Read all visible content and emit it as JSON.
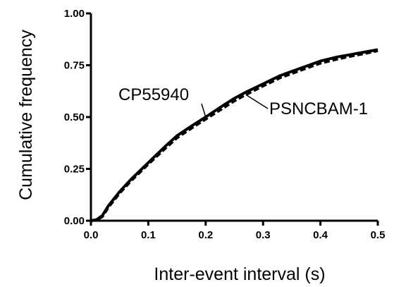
{
  "chart_data": {
    "type": "line",
    "title": "",
    "xlabel": "Inter-event interval  (s)",
    "ylabel": "Cumulative frequency",
    "xlim": [
      0.0,
      0.5
    ],
    "ylim": [
      0.0,
      1.0
    ],
    "x_ticks": [
      "0.0",
      "0.1",
      "0.2",
      "0.3",
      "0.4",
      "0.5"
    ],
    "y_ticks": [
      "0.00",
      "0.25",
      "0.50",
      "0.75",
      "1.00"
    ],
    "grid": false,
    "legend": "none",
    "series": [
      {
        "name": "CP55940",
        "style": "solid",
        "color": "#000000",
        "x": [
          0.0,
          0.01,
          0.02,
          0.03,
          0.05,
          0.07,
          0.1,
          0.13,
          0.15,
          0.18,
          0.2,
          0.23,
          0.25,
          0.27,
          0.3,
          0.33,
          0.35,
          0.38,
          0.4,
          0.43,
          0.45,
          0.48,
          0.5
        ],
        "y": [
          0.0,
          0.005,
          0.025,
          0.07,
          0.14,
          0.2,
          0.28,
          0.36,
          0.41,
          0.465,
          0.5,
          0.555,
          0.59,
          0.62,
          0.66,
          0.7,
          0.72,
          0.75,
          0.77,
          0.79,
          0.8,
          0.815,
          0.825
        ]
      },
      {
        "name": "PSNCBAM-1",
        "style": "dashed",
        "color": "#000000",
        "x": [
          0.0,
          0.01,
          0.02,
          0.03,
          0.05,
          0.07,
          0.1,
          0.13,
          0.15,
          0.18,
          0.2,
          0.23,
          0.25,
          0.27,
          0.3,
          0.33,
          0.35,
          0.38,
          0.4,
          0.43,
          0.45,
          0.48,
          0.5
        ],
        "y": [
          0.0,
          0.003,
          0.02,
          0.063,
          0.133,
          0.193,
          0.273,
          0.35,
          0.4,
          0.455,
          0.49,
          0.543,
          0.578,
          0.608,
          0.65,
          0.69,
          0.71,
          0.74,
          0.76,
          0.78,
          0.792,
          0.808,
          0.82
        ]
      }
    ],
    "annotations": [
      {
        "text": "CP55940",
        "target_series": 0,
        "at_x": 0.2
      },
      {
        "text": "PSNCBAM-1",
        "target_series": 1,
        "at_x": 0.27
      }
    ]
  }
}
